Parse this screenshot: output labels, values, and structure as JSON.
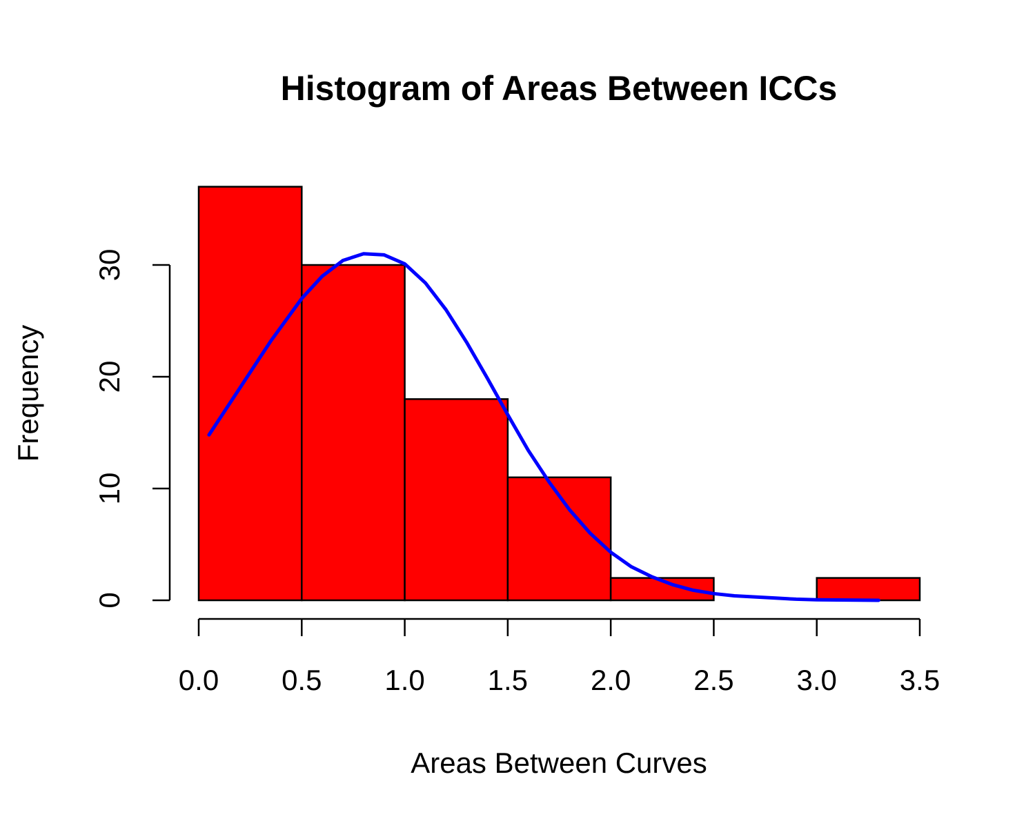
{
  "chart_data": {
    "type": "bar",
    "title": "Histogram of Areas Between ICCs",
    "xlabel": "Areas Between Curves",
    "ylabel": "Frequency",
    "bins": [
      {
        "start": 0.0,
        "end": 0.5,
        "count": 37
      },
      {
        "start": 0.5,
        "end": 1.0,
        "count": 30
      },
      {
        "start": 1.0,
        "end": 1.5,
        "count": 18
      },
      {
        "start": 1.5,
        "end": 2.0,
        "count": 11
      },
      {
        "start": 2.0,
        "end": 2.5,
        "count": 2
      },
      {
        "start": 2.5,
        "end": 3.0,
        "count": 0
      },
      {
        "start": 3.0,
        "end": 3.5,
        "count": 2
      }
    ],
    "x_ticks": [
      "0.0",
      "0.5",
      "1.0",
      "1.5",
      "2.0",
      "2.5",
      "3.0",
      "3.5"
    ],
    "y_ticks": [
      "0",
      "10",
      "20",
      "30"
    ],
    "xlim": [
      0.0,
      3.5
    ],
    "ylim": [
      0,
      37
    ],
    "grid": false,
    "bar_color": "#ff0000",
    "bar_border_color": "#000000",
    "overlay_curve": {
      "type": "line",
      "color": "#0000ff",
      "x": [
        0.05,
        0.2,
        0.35,
        0.5,
        0.6,
        0.7,
        0.8,
        0.9,
        1.0,
        1.1,
        1.2,
        1.3,
        1.4,
        1.5,
        1.6,
        1.7,
        1.8,
        1.9,
        2.0,
        2.1,
        2.2,
        2.3,
        2.4,
        2.5,
        2.6,
        2.7,
        2.8,
        2.9,
        3.0,
        3.1,
        3.2,
        3.3
      ],
      "y": [
        14.8,
        19.0,
        23.2,
        27.0,
        29.0,
        30.4,
        31.0,
        30.9,
        30.1,
        28.4,
        26.0,
        23.1,
        19.9,
        16.6,
        13.4,
        10.6,
        8.1,
        6.0,
        4.3,
        3.0,
        2.1,
        1.4,
        0.9,
        0.6,
        0.4,
        0.3,
        0.2,
        0.1,
        0.05,
        0.03,
        0.01,
        0.0
      ]
    }
  }
}
